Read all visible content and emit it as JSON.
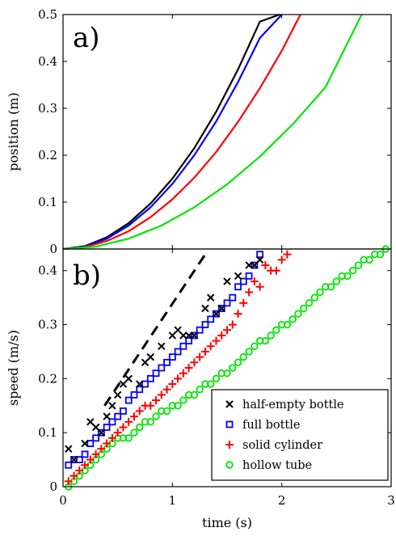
{
  "chart_data": [
    {
      "type": "line",
      "panel_label": "a)",
      "ylabel": "position (m)",
      "xlim": [
        0,
        3
      ],
      "ylim": [
        0,
        0.5
      ],
      "yticks": [
        "0",
        "0.1",
        "0.2",
        "0.3",
        "0.4",
        "0.5"
      ],
      "colors": {
        "black": "#000000",
        "blue": "#0000ff",
        "red": "#ff0000",
        "green": "#00e600"
      },
      "series": [
        {
          "color": "black",
          "x": [
            0,
            0.2,
            0.4,
            0.6,
            0.8,
            1.0,
            1.2,
            1.4,
            1.6,
            1.8,
            1.98
          ],
          "y": [
            0,
            0.006,
            0.025,
            0.055,
            0.097,
            0.15,
            0.215,
            0.293,
            0.383,
            0.485,
            0.5
          ]
        },
        {
          "color": "blue",
          "x": [
            0,
            0.2,
            0.4,
            0.6,
            0.8,
            1.0,
            1.2,
            1.4,
            1.6,
            1.8,
            2.0
          ],
          "y": [
            0,
            0.005,
            0.022,
            0.05,
            0.089,
            0.139,
            0.2,
            0.272,
            0.356,
            0.45,
            0.5
          ]
        },
        {
          "color": "red",
          "x": [
            0,
            0.2,
            0.4,
            0.6,
            0.8,
            1.0,
            1.2,
            1.4,
            1.6,
            1.8,
            2.0,
            2.17
          ],
          "y": [
            0,
            0.004,
            0.017,
            0.038,
            0.068,
            0.106,
            0.152,
            0.207,
            0.271,
            0.343,
            0.423,
            0.5
          ]
        },
        {
          "color": "green",
          "x": [
            0,
            0.3,
            0.6,
            0.9,
            1.2,
            1.5,
            1.8,
            2.1,
            2.4,
            2.73
          ],
          "y": [
            0,
            0.005,
            0.022,
            0.05,
            0.089,
            0.138,
            0.197,
            0.266,
            0.345,
            0.5
          ]
        }
      ]
    },
    {
      "type": "scatter",
      "panel_label": "b)",
      "xlabel": "time (s)",
      "ylabel": "speed (m/s)",
      "xlim": [
        0,
        3
      ],
      "ylim": [
        0,
        0.44
      ],
      "xticks": [
        "0",
        "1",
        "2",
        "3"
      ],
      "yticks": [
        "0",
        "0.1",
        "0.2",
        "0.3",
        "0.4"
      ],
      "reference_line": {
        "style": "dashed",
        "color": "#000000",
        "x": [
          0.38,
          1.3
        ],
        "y": [
          0.15,
          0.43
        ]
      },
      "series": [
        {
          "name": "half-empty bottle",
          "marker": "x",
          "color": "#000000",
          "x": [
            0.05,
            0.1,
            0.2,
            0.25,
            0.3,
            0.35,
            0.4,
            0.45,
            0.5,
            0.55,
            0.6,
            0.7,
            0.75,
            0.8,
            0.9,
            1.0,
            1.05,
            1.1,
            1.15,
            1.2,
            1.3,
            1.35,
            1.4,
            1.45,
            1.5,
            1.6,
            1.7,
            1.75,
            1.8
          ],
          "y": [
            0.07,
            0.05,
            0.08,
            0.12,
            0.11,
            0.1,
            0.13,
            0.15,
            0.17,
            0.19,
            0.2,
            0.19,
            0.23,
            0.24,
            0.26,
            0.28,
            0.29,
            0.28,
            0.28,
            0.28,
            0.33,
            0.35,
            0.32,
            0.33,
            0.38,
            0.39,
            0.41,
            0.41,
            0.42
          ]
        },
        {
          "name": "full bottle",
          "marker": "square",
          "color": "#0000ff",
          "x": [
            0.05,
            0.1,
            0.15,
            0.2,
            0.25,
            0.3,
            0.35,
            0.4,
            0.45,
            0.5,
            0.55,
            0.6,
            0.65,
            0.7,
            0.75,
            0.8,
            0.85,
            0.9,
            0.95,
            1.0,
            1.05,
            1.1,
            1.15,
            1.2,
            1.25,
            1.3,
            1.35,
            1.4,
            1.45,
            1.5,
            1.55,
            1.6,
            1.65,
            1.7,
            1.75,
            1.8
          ],
          "y": [
            0.04,
            0.05,
            0.05,
            0.06,
            0.08,
            0.09,
            0.1,
            0.11,
            0.12,
            0.13,
            0.14,
            0.16,
            0.17,
            0.18,
            0.19,
            0.2,
            0.21,
            0.22,
            0.23,
            0.24,
            0.25,
            0.26,
            0.27,
            0.28,
            0.29,
            0.3,
            0.31,
            0.32,
            0.33,
            0.34,
            0.35,
            0.37,
            0.38,
            0.39,
            0.41,
            0.43
          ]
        },
        {
          "name": "solid cylinder",
          "marker": "plus",
          "color": "#ff0000",
          "x": [
            0.05,
            0.1,
            0.15,
            0.2,
            0.25,
            0.3,
            0.35,
            0.4,
            0.45,
            0.5,
            0.55,
            0.6,
            0.65,
            0.7,
            0.75,
            0.8,
            0.85,
            0.9,
            0.95,
            1.0,
            1.05,
            1.1,
            1.15,
            1.2,
            1.25,
            1.3,
            1.35,
            1.4,
            1.45,
            1.5,
            1.55,
            1.6,
            1.65,
            1.7,
            1.75,
            1.8,
            1.85,
            1.9,
            1.95,
            2.0,
            2.05
          ],
          "y": [
            0.01,
            0.02,
            0.03,
            0.04,
            0.05,
            0.06,
            0.07,
            0.08,
            0.09,
            0.1,
            0.11,
            0.12,
            0.13,
            0.14,
            0.15,
            0.15,
            0.16,
            0.17,
            0.18,
            0.19,
            0.2,
            0.21,
            0.22,
            0.23,
            0.24,
            0.25,
            0.26,
            0.27,
            0.28,
            0.29,
            0.3,
            0.32,
            0.34,
            0.36,
            0.38,
            0.37,
            0.41,
            0.4,
            0.4,
            0.42,
            0.43
          ]
        },
        {
          "name": "hollow tube",
          "marker": "circle",
          "color": "#00e600",
          "x": [
            0.05,
            0.1,
            0.15,
            0.2,
            0.25,
            0.3,
            0.35,
            0.4,
            0.45,
            0.5,
            0.55,
            0.6,
            0.65,
            0.7,
            0.75,
            0.8,
            0.85,
            0.9,
            0.95,
            1.0,
            1.05,
            1.1,
            1.15,
            1.2,
            1.25,
            1.3,
            1.35,
            1.4,
            1.45,
            1.5,
            1.55,
            1.6,
            1.65,
            1.7,
            1.75,
            1.8,
            1.85,
            1.9,
            1.95,
            2.0,
            2.05,
            2.1,
            2.15,
            2.2,
            2.25,
            2.3,
            2.35,
            2.4,
            2.45,
            2.5,
            2.55,
            2.6,
            2.65,
            2.7,
            2.75,
            2.8,
            2.85,
            2.9,
            2.95
          ],
          "y": [
            0.0,
            0.01,
            0.02,
            0.03,
            0.04,
            0.05,
            0.06,
            0.07,
            0.08,
            0.09,
            0.09,
            0.09,
            0.1,
            0.11,
            0.12,
            0.12,
            0.13,
            0.14,
            0.14,
            0.15,
            0.15,
            0.16,
            0.17,
            0.17,
            0.18,
            0.19,
            0.19,
            0.2,
            0.21,
            0.21,
            0.22,
            0.23,
            0.24,
            0.25,
            0.26,
            0.27,
            0.27,
            0.28,
            0.29,
            0.3,
            0.3,
            0.31,
            0.32,
            0.33,
            0.34,
            0.35,
            0.36,
            0.37,
            0.37,
            0.38,
            0.39,
            0.39,
            0.4,
            0.41,
            0.42,
            0.42,
            0.43,
            0.43,
            0.44
          ]
        }
      ]
    }
  ]
}
